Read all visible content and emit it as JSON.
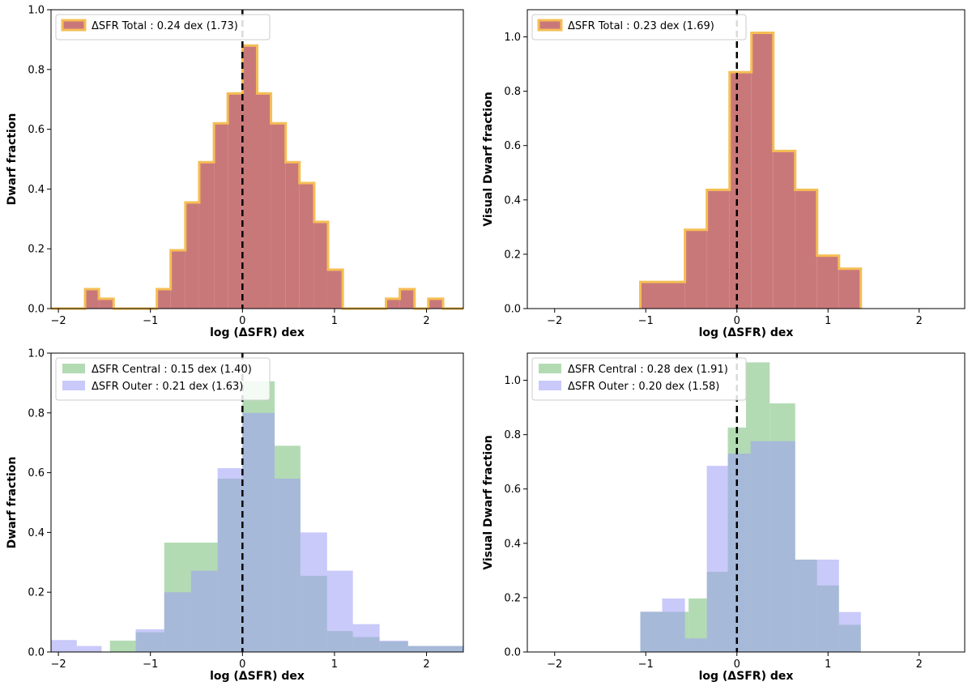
{
  "chart_data": [
    {
      "id": "top-left",
      "type": "bar",
      "xlabel": "log (ΔSFR) dex",
      "ylabel": "Dwarf fraction",
      "xlim": [
        -2.08,
        2.4
      ],
      "ylim": [
        0.0,
        1.0
      ],
      "xticks": [
        -2,
        -1,
        0,
        1,
        2
      ],
      "xtick_labels": [
        "−2",
        "−1",
        "0",
        "1",
        "2"
      ],
      "yticks": [
        0.0,
        0.2,
        0.4,
        0.6,
        0.8,
        1.0
      ],
      "ytick_labels": [
        "0.0",
        "0.2",
        "0.4",
        "0.6",
        "0.8",
        "1.0"
      ],
      "legend_position": "top-left",
      "vline_x": 0,
      "series": [
        {
          "name": "ΔSFR Total : 0.24 dex (1.73)",
          "color": "#c9787a",
          "edgecolor": "#f5be55",
          "edges": [
            -2.08,
            -1.71,
            -1.56,
            -1.4,
            -1.24,
            -1.09,
            -0.93,
            -0.78,
            -0.62,
            -0.47,
            -0.31,
            -0.16,
            0.0,
            0.16,
            0.31,
            0.47,
            0.62,
            0.78,
            0.93,
            1.09,
            1.24,
            1.4,
            1.56,
            1.71,
            1.87,
            2.02,
            2.18,
            2.33,
            2.4
          ],
          "values": [
            0,
            0.065,
            0.033,
            0,
            0,
            0,
            0.065,
            0.195,
            0.355,
            0.49,
            0.62,
            0.72,
            0.88,
            0.72,
            0.62,
            0.49,
            0.42,
            0.29,
            0.13,
            0,
            0,
            0,
            0.033,
            0.065,
            0,
            0.033,
            0,
            0
          ]
        }
      ]
    },
    {
      "id": "top-right",
      "type": "bar",
      "xlabel": "log (ΔSFR) dex",
      "ylabel": "Visual Dwarf fraction",
      "xlim": [
        -2.3,
        2.5
      ],
      "ylim": [
        0.0,
        1.1
      ],
      "xticks": [
        -2,
        -1,
        0,
        1,
        2
      ],
      "xtick_labels": [
        "−2",
        "−1",
        "0",
        "1",
        "2"
      ],
      "yticks": [
        0.0,
        0.2,
        0.4,
        0.6,
        0.8,
        1.0
      ],
      "ytick_labels": [
        "0.0",
        "0.2",
        "0.4",
        "0.6",
        "0.8",
        "1.0"
      ],
      "legend_position": "top-left",
      "vline_x": 0,
      "series": [
        {
          "name": "ΔSFR Total : 0.23 dex (1.69)",
          "color": "#c9787a",
          "edgecolor": "#f5be55",
          "edges": [
            -1.06,
            -0.57,
            -0.33,
            -0.08,
            0.16,
            0.4,
            0.64,
            0.88,
            1.12,
            1.36
          ],
          "values": [
            0.098,
            0.29,
            0.437,
            0.87,
            1.015,
            0.58,
            0.437,
            0.195,
            0.147
          ]
        }
      ]
    },
    {
      "id": "bottom-left",
      "type": "bar",
      "xlabel": "log (ΔSFR) dex",
      "ylabel": "Dwarf fraction",
      "xlim": [
        -2.08,
        2.4
      ],
      "ylim": [
        0.0,
        1.0
      ],
      "xticks": [
        -2,
        -1,
        0,
        1,
        2
      ],
      "xtick_labels": [
        "−2",
        "−1",
        "0",
        "1",
        "2"
      ],
      "yticks": [
        0.0,
        0.2,
        0.4,
        0.6,
        0.8,
        1.0
      ],
      "ytick_labels": [
        "0.0",
        "0.2",
        "0.4",
        "0.6",
        "0.8",
        "1.0"
      ],
      "legend_position": "top-left",
      "vline_x": 0,
      "series": [
        {
          "name": "ΔSFR Central : 0.15 dex (1.40)",
          "color": "#74bd74",
          "edges": [
            -1.44,
            -1.16,
            -0.85,
            -0.27,
            0.0,
            0.35,
            0.63,
            0.92,
            1.2,
            1.49,
            1.8,
            2.1,
            2.4
          ],
          "values": [
            0.038,
            0.066,
            0.366,
            0.58,
            0.906,
            0.69,
            0.255,
            0.07,
            0.05,
            0.035,
            0.02,
            0.02
          ]
        },
        {
          "name": "ΔSFR Outer : 0.21 dex (1.63)",
          "color": "#9c9cf6",
          "edges": [
            -2.08,
            -1.8,
            -1.53,
            -1.16,
            -0.85,
            -0.56,
            -0.27,
            0.0,
            0.35,
            0.63,
            0.92,
            1.2,
            1.49,
            1.8,
            2.1,
            2.4
          ],
          "values": [
            0.04,
            0.02,
            0.0,
            0.076,
            0.2,
            0.272,
            0.615,
            0.8,
            0.58,
            0.4,
            0.272,
            0.093,
            0.038,
            0.02,
            0.02
          ]
        }
      ]
    },
    {
      "id": "bottom-right",
      "type": "bar",
      "xlabel": "log (ΔSFR) dex",
      "ylabel": "Visual Dwarf fraction",
      "xlim": [
        -2.3,
        2.5
      ],
      "ylim": [
        0.0,
        1.1
      ],
      "xticks": [
        -2,
        -1,
        0,
        1,
        2
      ],
      "xtick_labels": [
        "−2",
        "−1",
        "0",
        "1",
        "2"
      ],
      "yticks": [
        0.0,
        0.2,
        0.4,
        0.6,
        0.8,
        1.0
      ],
      "ytick_labels": [
        "0.0",
        "0.2",
        "0.4",
        "0.6",
        "0.8",
        "1.0"
      ],
      "legend_position": "top-left",
      "vline_x": 0,
      "series": [
        {
          "name": "ΔSFR Central : 0.28 dex (1.91)",
          "color": "#74bd74",
          "edges": [
            -1.06,
            -0.53,
            -0.33,
            -0.1,
            0.1,
            0.36,
            0.64,
            0.88,
            1.12,
            1.36
          ],
          "values": [
            0.148,
            0.197,
            0.295,
            0.826,
            1.066,
            0.915,
            0.34,
            0.245,
            0.1
          ]
        },
        {
          "name": "ΔSFR Outer : 0.20 dex (1.58)",
          "color": "#9c9cf6",
          "edges": [
            -1.06,
            -0.82,
            -0.57,
            -0.33,
            -0.1,
            0.15,
            0.64,
            0.88,
            1.12,
            1.36
          ],
          "values": [
            0.148,
            0.197,
            0.05,
            0.685,
            0.73,
            0.776,
            0.34,
            0.34,
            0.147
          ]
        }
      ]
    }
  ]
}
